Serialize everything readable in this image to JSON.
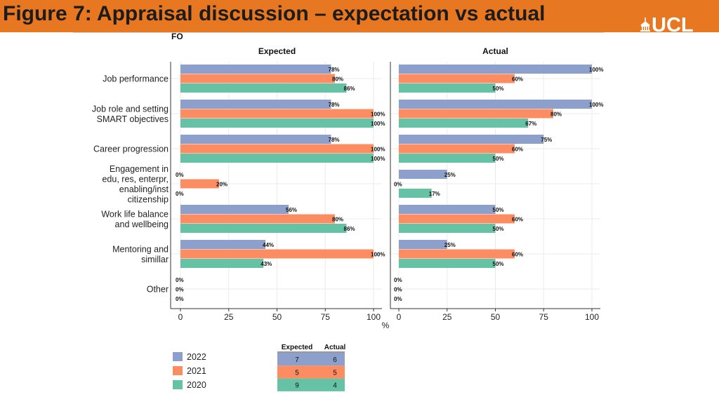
{
  "header": {
    "title": "Figure 7: Appraisal discussion – expectation vs actual",
    "logo_text": "UCL",
    "color": "#e87722"
  },
  "chart_data": {
    "type": "bar",
    "orientation": "horizontal",
    "title": "FO",
    "xlabel": "%",
    "xlim": [
      0,
      100
    ],
    "xticks": [
      "0",
      "25",
      "50",
      "75",
      "100"
    ],
    "grid": true,
    "categories": [
      "Job performance",
      "Job role and setting\nSMART objectives",
      "Career progression",
      "Engagement in\nedu, res, enterpr,\nenabling/inst\ncitizenship",
      "Work life balance\nand wellbeing",
      "Mentoring and\nsimillar",
      "Other"
    ],
    "panels": [
      {
        "title": "Expected",
        "series": [
          {
            "name": "2022",
            "color": "#8da0cb",
            "values": [
              78,
              78,
              78,
              0,
              56,
              44,
              0
            ],
            "labels": [
              "78%",
              "78%",
              "78%",
              "0%",
              "56%",
              "44%",
              "0%"
            ]
          },
          {
            "name": "2021",
            "color": "#fc8d62",
            "values": [
              80,
              100,
              100,
              20,
              80,
              100,
              0
            ],
            "labels": [
              "80%",
              "100%",
              "100%",
              "20%",
              "80%",
              "100%",
              "0%"
            ]
          },
          {
            "name": "2020",
            "color": "#66c2a5",
            "values": [
              86,
              100,
              100,
              0,
              86,
              43,
              0
            ],
            "labels": [
              "86%",
              "100%",
              "100%",
              "0%",
              "86%",
              "43%",
              "0%"
            ]
          }
        ]
      },
      {
        "title": "Actual",
        "series": [
          {
            "name": "2022",
            "color": "#8da0cb",
            "values": [
              100,
              100,
              75,
              25,
              50,
              25,
              0
            ],
            "labels": [
              "100%",
              "100%",
              "75%",
              "25%",
              "50%",
              "25%",
              "0%"
            ]
          },
          {
            "name": "2021",
            "color": "#fc8d62",
            "values": [
              60,
              80,
              60,
              0,
              60,
              60,
              0
            ],
            "labels": [
              "60%",
              "80%",
              "60%",
              "0%",
              "60%",
              "60%",
              "0%"
            ]
          },
          {
            "name": "2020",
            "color": "#66c2a5",
            "values": [
              50,
              67,
              50,
              17,
              50,
              50,
              0
            ],
            "labels": [
              "50%",
              "67%",
              "50%",
              "17%",
              "50%",
              "50%",
              "0%"
            ]
          }
        ]
      }
    ],
    "legend": {
      "placement": "bottom-left",
      "entries": [
        {
          "name": "2022",
          "color": "#8da0cb"
        },
        {
          "name": "2021",
          "color": "#fc8d62"
        },
        {
          "name": "2020",
          "color": "#66c2a5"
        }
      ]
    },
    "counts_table": {
      "headers": [
        "Expected",
        "Actual"
      ],
      "rows": [
        {
          "year": "2022",
          "color": "#8da0cb",
          "values": [
            "7",
            "6"
          ]
        },
        {
          "year": "2021",
          "color": "#fc8d62",
          "values": [
            "5",
            "5"
          ]
        },
        {
          "year": "2020",
          "color": "#66c2a5",
          "values": [
            "9",
            "4"
          ]
        }
      ]
    }
  }
}
